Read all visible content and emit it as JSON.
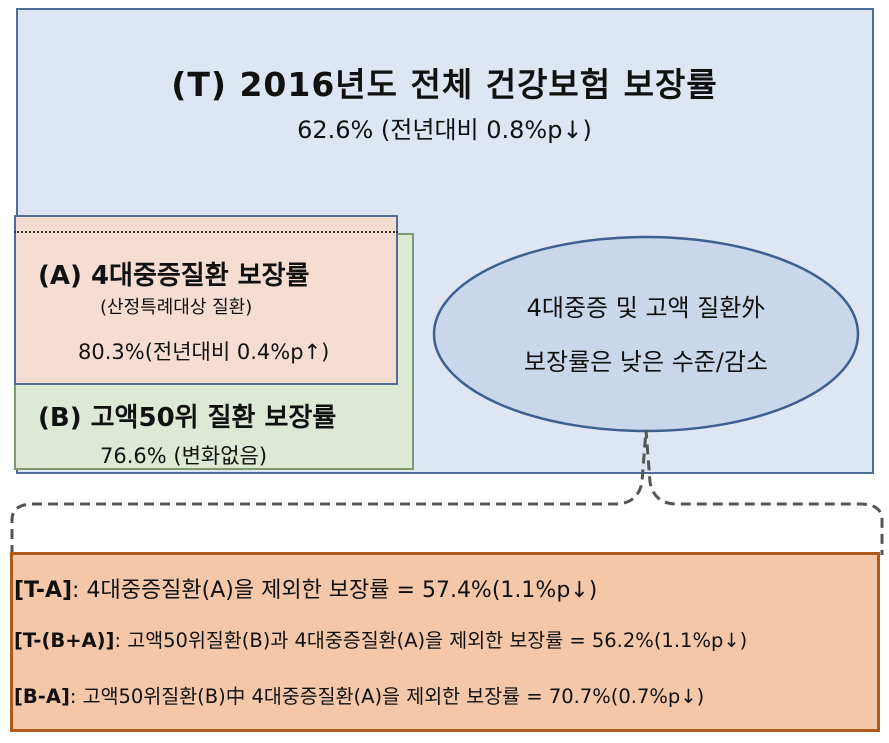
{
  "t_box": {
    "title": "(T) 2016년도 전체 건강보험 보장률",
    "subtitle": "62.6% (전년대비 0.8%p↓)"
  },
  "a_box": {
    "title": "(A) 4대중증질환 보장률",
    "subtitle": "(산정특례대상 질환)",
    "value": "80.3%(전년대비 0.4%p↑)"
  },
  "b_box": {
    "title": "(B) 고액50위 질환 보장률",
    "value": "76.6% (변화없음)"
  },
  "ellipse": {
    "line1": "4대중증 및 고액 질환外",
    "line2": "보장률은 낮은 수준/감소"
  },
  "rows": [
    {
      "label": "[T-A]",
      "text": ": 4대중증질환(A)을 제외한 보장률 = 57.4%(1.1%p↓)"
    },
    {
      "label": "[T-(B+A)]",
      "text": ": 고액50위질환(B)과 4대중증질환(A)을 제외한 보장률 = 56.2%(1.1%p↓)"
    },
    {
      "label": "[B-A]",
      "text": ": 고액50위질환(B)中 4대중증질환(A)을 제외한 보장률 = 70.7%(0.7%p↓)"
    }
  ],
  "colors": {
    "t_fill": "#dde6f2",
    "a_fill": "#f6ddd1",
    "b_fill": "#dde9d4",
    "ellipse_fill": "#c9d7ea",
    "bottom_fill": "#f4c7a8",
    "bottom_border": "#b05b1e"
  }
}
